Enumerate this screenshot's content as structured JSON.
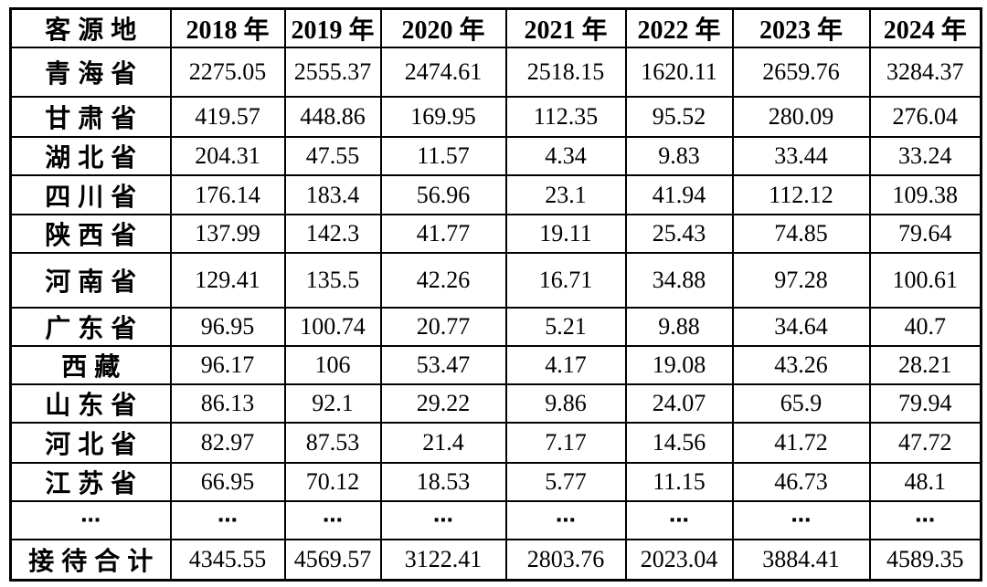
{
  "table": {
    "header": [
      "客源地",
      "2018 年",
      "2019 年",
      "2020 年",
      "2021 年",
      "2022 年",
      "2023 年",
      "2024 年"
    ],
    "rows": [
      {
        "label": "青海省",
        "values": [
          "2275.05",
          "2555.37",
          "2474.61",
          "2518.15",
          "1620.11",
          "2659.76",
          "3284.37"
        ]
      },
      {
        "label": "甘肃省",
        "values": [
          "419.57",
          "448.86",
          "169.95",
          "112.35",
          "95.52",
          "280.09",
          "276.04"
        ]
      },
      {
        "label": "湖北省",
        "values": [
          "204.31",
          "47.55",
          "11.57",
          "4.34",
          "9.83",
          "33.44",
          "33.24"
        ]
      },
      {
        "label": "四川省",
        "values": [
          "176.14",
          "183.4",
          "56.96",
          "23.1",
          "41.94",
          "112.12",
          "109.38"
        ]
      },
      {
        "label": "陕西省",
        "values": [
          "137.99",
          "142.3",
          "41.77",
          "19.11",
          "25.43",
          "74.85",
          "79.64"
        ]
      },
      {
        "label": "河南省",
        "values": [
          "129.41",
          "135.5",
          "42.26",
          "16.71",
          "34.88",
          "97.28",
          "100.61"
        ]
      },
      {
        "label": "广东省",
        "values": [
          "96.95",
          "100.74",
          "20.77",
          "5.21",
          "9.88",
          "34.64",
          "40.7"
        ]
      },
      {
        "label": "西藏",
        "values": [
          "96.17",
          "106",
          "53.47",
          "4.17",
          "19.08",
          "43.26",
          "28.21"
        ]
      },
      {
        "label": "山东省",
        "values": [
          "86.13",
          "92.1",
          "29.22",
          "9.86",
          "24.07",
          "65.9",
          "79.94"
        ]
      },
      {
        "label": "河北省",
        "values": [
          "82.97",
          "87.53",
          "21.4",
          "7.17",
          "14.56",
          "41.72",
          "47.72"
        ]
      },
      {
        "label": "江苏省",
        "values": [
          "66.95",
          "70.12",
          "18.53",
          "5.77",
          "11.15",
          "46.73",
          "48.1"
        ]
      },
      {
        "label": "⋯",
        "values": [
          "⋯",
          "⋯",
          "⋯",
          "⋯",
          "⋯",
          "⋯",
          "⋯"
        ]
      },
      {
        "label": "接待合计",
        "values": [
          "4345.55",
          "4569.57",
          "3122.41",
          "2803.76",
          "2023.04",
          "3884.41",
          "4589.35"
        ]
      }
    ]
  },
  "colors": {
    "border": "#000000",
    "text": "#000000",
    "background": "#ffffff"
  }
}
